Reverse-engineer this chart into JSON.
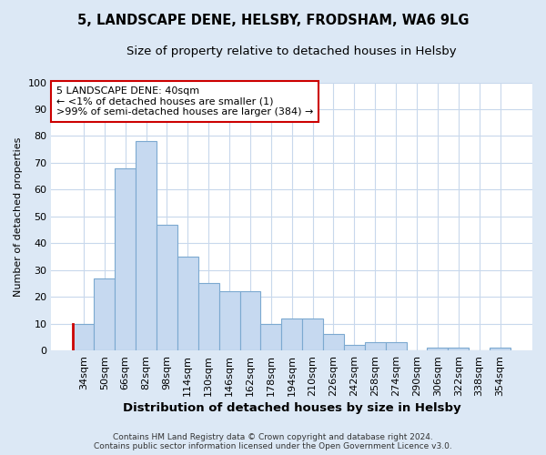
{
  "title": "5, LANDSCAPE DENE, HELSBY, FRODSHAM, WA6 9LG",
  "subtitle": "Size of property relative to detached houses in Helsby",
  "xlabel": "Distribution of detached houses by size in Helsby",
  "ylabel": "Number of detached properties",
  "categories": [
    "34sqm",
    "50sqm",
    "66sqm",
    "82sqm",
    "98sqm",
    "114sqm",
    "130sqm",
    "146sqm",
    "162sqm",
    "178sqm",
    "194sqm",
    "210sqm",
    "226sqm",
    "242sqm",
    "258sqm",
    "274sqm",
    "290sqm",
    "306sqm",
    "322sqm",
    "338sqm",
    "354sqm"
  ],
  "values": [
    10,
    27,
    68,
    78,
    47,
    35,
    25,
    22,
    22,
    10,
    12,
    12,
    6,
    2,
    3,
    3,
    0,
    1,
    1,
    0,
    1
  ],
  "bar_color": "#c6d9f0",
  "bar_edge_color": "#7ca9d0",
  "annotation_box_text": "5 LANDSCAPE DENE: 40sqm\n← <1% of detached houses are smaller (1)\n>99% of semi-detached houses are larger (384) →",
  "annotation_box_edge_color": "#cc0000",
  "highlight_bar_index": 0,
  "highlight_bar_edge_color": "#cc0000",
  "ylim": [
    0,
    100
  ],
  "yticks": [
    0,
    10,
    20,
    30,
    40,
    50,
    60,
    70,
    80,
    90,
    100
  ],
  "footer_line1": "Contains HM Land Registry data © Crown copyright and database right 2024.",
  "footer_line2": "Contains public sector information licensed under the Open Government Licence v3.0.",
  "bg_color": "#dce8f5",
  "plot_bg_color": "#ffffff",
  "grid_color": "#c8d8ec",
  "title_fontsize": 10.5,
  "subtitle_fontsize": 9.5,
  "tick_fontsize": 8,
  "ylabel_fontsize": 8,
  "xlabel_fontsize": 9.5,
  "ann_fontsize": 8
}
